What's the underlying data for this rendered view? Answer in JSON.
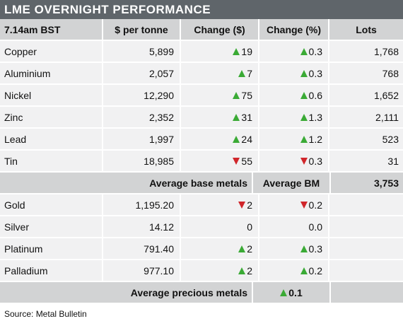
{
  "title": "LME OVERNIGHT PERFORMANCE",
  "header": [
    "7.14am BST",
    "$ per tonne",
    "Change ($)",
    "Change (%)",
    "Lots"
  ],
  "base_metals": [
    {
      "name": "Copper",
      "price": "5,899",
      "dir": "up",
      "chg": "19",
      "pct": "0.3",
      "lots": "1,768"
    },
    {
      "name": "Aluminium",
      "price": "2,057",
      "dir": "up",
      "chg": "7",
      "pct": "0.3",
      "lots": "768"
    },
    {
      "name": "Nickel",
      "price": "12,290",
      "dir": "up",
      "chg": "75",
      "pct": "0.6",
      "lots": "1,652"
    },
    {
      "name": "Zinc",
      "price": "2,352",
      "dir": "up",
      "chg": "31",
      "pct": "1.3",
      "lots": "2,111"
    },
    {
      "name": "Lead",
      "price": "1,997",
      "dir": "up",
      "chg": "24",
      "pct": "1.2",
      "lots": "523"
    },
    {
      "name": "Tin",
      "price": "18,985",
      "dir": "down",
      "chg": "55",
      "pct": "0.3",
      "lots": "31"
    }
  ],
  "base_avg": {
    "label": "Average base metals",
    "label2": "Average BM",
    "value": "3,753"
  },
  "precious_metals": [
    {
      "name": "Gold",
      "price": "1,195.20",
      "dir": "down",
      "chg": "2",
      "pct": "0.2"
    },
    {
      "name": "Silver",
      "price": "14.12",
      "dir": "none",
      "chg": "0",
      "pct": "0.0"
    },
    {
      "name": "Platinum",
      "price": "791.40",
      "dir": "up",
      "chg": "2",
      "pct": "0.3"
    },
    {
      "name": "Palladium",
      "price": "977.10",
      "dir": "up",
      "chg": "2",
      "pct": "0.2"
    }
  ],
  "precious_avg": {
    "label": "Average precious metals",
    "dir": "up",
    "value": "0.1"
  },
  "source": "Source: Metal Bulletin",
  "colors": {
    "up": "#3aaa35",
    "down": "#d0262b",
    "header_bg": "#d2d3d4",
    "title_bg": "#5f656a"
  }
}
